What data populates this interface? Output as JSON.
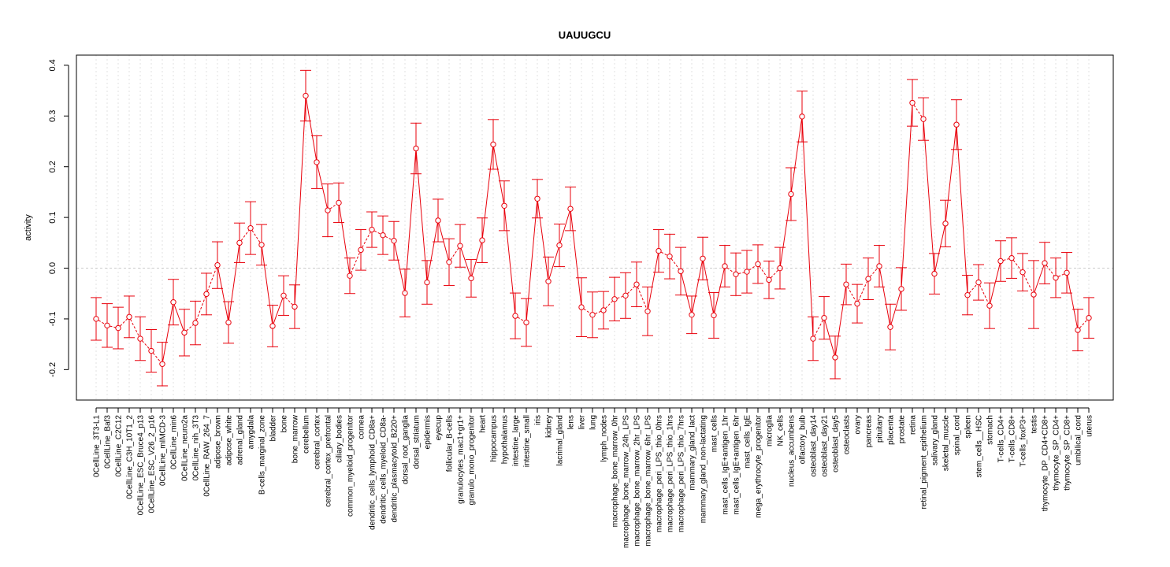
{
  "chart_data": {
    "type": "line",
    "title": "UAUUGCU",
    "xlabel": "",
    "ylabel": "activity",
    "ylim": [
      -0.26,
      0.42
    ],
    "yticks": [
      -0.2,
      -0.1,
      0.0,
      0.1,
      0.2,
      0.3,
      0.4
    ],
    "ytick_labels": [
      "-0.2",
      "-0.1",
      "0.0",
      "0.1",
      "0.2",
      "0.3",
      "0.4"
    ],
    "grid": true,
    "reference_line": 0.0,
    "series_color": "#e8000b",
    "categories": [
      "0CellLine_3T3-L1",
      "0CellLine_Baf3",
      "0CellLine_C2C12",
      "0CellLine_C3H_10T1_2",
      "0CellLine_ESC_Bruce4_p13",
      "0CellLine_ESC_V26_2_p16",
      "0CellLine_mIMCD-3",
      "0CellLine_min6",
      "0CellLine_neuro2a",
      "0CellLine_nih_3T3",
      "0CellLine_RAW_264_7",
      "adipose_brown",
      "adipose_white",
      "adrenal_gland",
      "amygdala",
      "B-cells_marginal_zone",
      "bladder",
      "bone",
      "bone_marrow",
      "cerebellum",
      "cerebral_cortex",
      "cerebral_cortex_prefrontal",
      "ciliary_bodies",
      "common_myeloid_progenitor",
      "cornea",
      "dendritic_cells_lymphoid_CD8a+",
      "dendritic_cells_myeloid_CD8a-",
      "dendritic_plasmacytoid_B220+",
      "dorsal_root_ganglia",
      "dorsal_striatum",
      "epidermis",
      "eyecup",
      "follicular_B-cells",
      "granulocytes_mac1+gr1+",
      "granulo_mono_progenitor",
      "heart",
      "hippocampus",
      "hypothalamus",
      "intestine_large",
      "intestine_small",
      "iris",
      "kidney",
      "lacrimal_gland",
      "lens",
      "liver",
      "lung",
      "lymph_nodes",
      "macrophage_bone_marrow_0hr",
      "macrophage_bone_marrow_24h_LPS",
      "macrophage_bone_marrow_2hr_LPS",
      "macrophage_bone_marrow_6hr_LPS",
      "macrophage_peri_LPS_thio_0hrs",
      "macrophage_peri_LPS_thio_1hrs",
      "macrophage_peri_LPS_thio_7hrs",
      "mammary_gland_lact",
      "mammary_gland_non-lactating",
      "mast_cells",
      "mast_cells_IgE+antigen_1hr",
      "mast_cells_IgE+antigen_6hr",
      "mast_cells_IgE",
      "mega_erythrocyte_progenitor",
      "microglia",
      "NK_cells",
      "nucleus_accumbens",
      "olfactory_bulb",
      "osteoblast_day14",
      "osteoblast_day21",
      "osteoblast_day5",
      "osteoclasts",
      "ovary",
      "pancreas",
      "pituitary",
      "placenta",
      "prostate",
      "retina",
      "retinal_pigment_epithelium",
      "salivary_gland",
      "skeletal_muscle",
      "spinal_cord",
      "spleen",
      "stem_cells__HSC",
      "stomach",
      "T-cells_CD4+",
      "T-cells_CD8+",
      "T-cells_foxP3+",
      "testis",
      "thymocyte_DP_CD4+CD8+",
      "thymocyte_SP_CD4+",
      "thymocyte_SP_CD8+",
      "umbilical_cord",
      "uterus"
    ],
    "values": [
      -0.1,
      -0.113,
      -0.118,
      -0.096,
      -0.139,
      -0.163,
      -0.189,
      -0.067,
      -0.127,
      -0.108,
      -0.051,
      0.006,
      -0.107,
      0.05,
      0.079,
      0.046,
      -0.114,
      -0.054,
      -0.076,
      0.34,
      0.209,
      0.114,
      0.129,
      -0.015,
      0.036,
      0.076,
      0.065,
      0.054,
      -0.049,
      0.236,
      -0.028,
      0.094,
      0.012,
      0.044,
      -0.02,
      0.055,
      0.244,
      0.123,
      -0.094,
      -0.107,
      0.137,
      -0.026,
      0.045,
      0.117,
      -0.077,
      -0.092,
      -0.083,
      -0.061,
      -0.054,
      -0.032,
      -0.085,
      0.034,
      0.023,
      -0.006,
      -0.092,
      0.019,
      -0.093,
      0.004,
      -0.012,
      -0.007,
      0.008,
      -0.023,
      0.0,
      0.146,
      0.299,
      -0.139,
      -0.098,
      -0.176,
      -0.032,
      -0.07,
      -0.021,
      0.004,
      -0.116,
      -0.041,
      0.326,
      0.294,
      -0.011,
      0.088,
      0.283,
      -0.053,
      -0.028,
      -0.074,
      0.014,
      0.02,
      -0.008,
      -0.052,
      0.01,
      -0.019,
      -0.009,
      -0.122,
      -0.098
    ],
    "errors": [
      0.042,
      0.043,
      0.041,
      0.041,
      0.043,
      0.042,
      0.043,
      0.045,
      0.046,
      0.043,
      0.041,
      0.046,
      0.041,
      0.039,
      0.052,
      0.04,
      0.041,
      0.039,
      0.043,
      0.05,
      0.052,
      0.052,
      0.039,
      0.035,
      0.04,
      0.035,
      0.038,
      0.038,
      0.047,
      0.05,
      0.043,
      0.042,
      0.046,
      0.042,
      0.037,
      0.044,
      0.049,
      0.049,
      0.045,
      0.047,
      0.038,
      0.048,
      0.042,
      0.043,
      0.058,
      0.045,
      0.037,
      0.043,
      0.045,
      0.044,
      0.048,
      0.042,
      0.044,
      0.047,
      0.037,
      0.042,
      0.045,
      0.041,
      0.042,
      0.042,
      0.038,
      0.037,
      0.041,
      0.052,
      0.05,
      0.043,
      0.042,
      0.042,
      0.04,
      0.038,
      0.041,
      0.041,
      0.045,
      0.042,
      0.046,
      0.042,
      0.04,
      0.046,
      0.049,
      0.039,
      0.035,
      0.045,
      0.04,
      0.04,
      0.037,
      0.067,
      0.041,
      0.039,
      0.04,
      0.041,
      0.04
    ]
  }
}
